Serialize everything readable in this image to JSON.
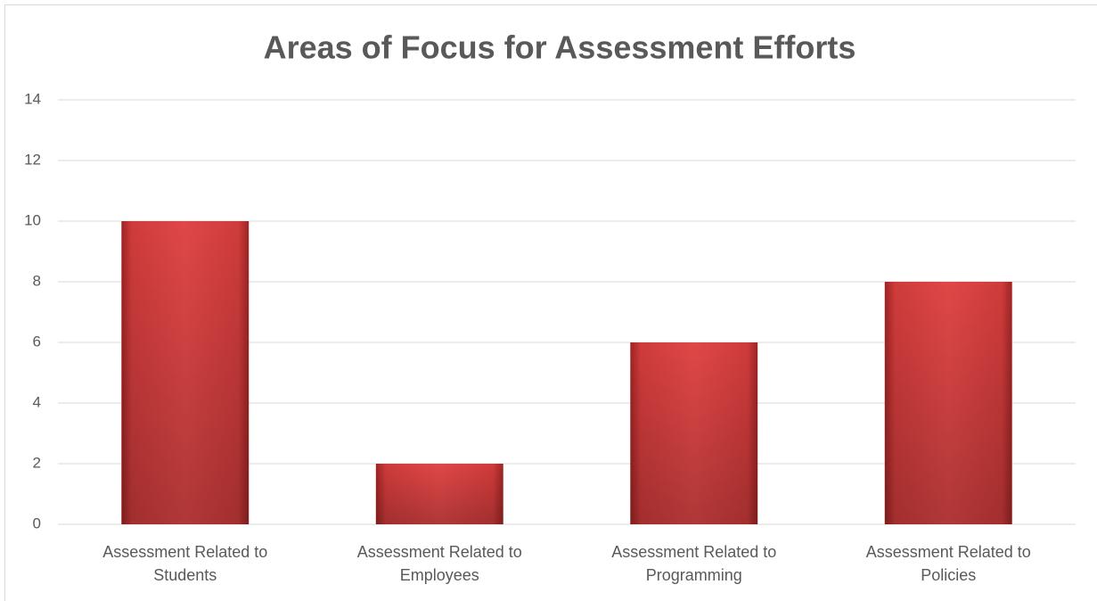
{
  "chart_data": {
    "type": "bar",
    "title": "Areas of Focus for Assessment Efforts",
    "categories": [
      "Assessment Related to Students",
      "Assessment Related to Employees",
      "Assessment Related to Programming",
      "Assessment Related to Policies"
    ],
    "values": [
      10,
      2,
      6,
      8
    ],
    "color": "#d94040",
    "ylim": [
      0,
      14
    ],
    "yticks": [
      0,
      2,
      4,
      6,
      8,
      10,
      12,
      14
    ],
    "grid": true
  }
}
